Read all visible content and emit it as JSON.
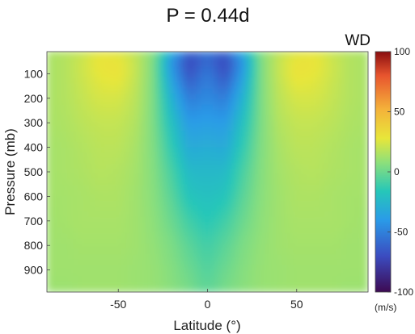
{
  "chart_data": {
    "type": "heatmap",
    "title": "P = 0.44d",
    "panel_label": "WD",
    "xlabel": "Latitude (°)",
    "ylabel": "Pressure (mb)",
    "xlim": [
      -90,
      90
    ],
    "ylim": [
      990,
      10
    ],
    "y_reversed": true,
    "x_ticks": [
      -50,
      0,
      50
    ],
    "x_tick_labels": [
      "-50",
      "0",
      "50"
    ],
    "y_ticks": [
      100,
      200,
      300,
      400,
      500,
      600,
      700,
      800,
      900
    ],
    "y_tick_labels": [
      "100",
      "200",
      "300",
      "400",
      "500",
      "600",
      "700",
      "800",
      "900"
    ],
    "colorbar": {
      "min": -100,
      "max": 100,
      "ticks": [
        100,
        50,
        0,
        -50,
        -100
      ],
      "tick_labels": [
        "100",
        "50",
        "0",
        "-50",
        "-100"
      ],
      "unit": "(m/s)",
      "colormap": "parula-jet",
      "colors": [
        "#3d0a52",
        "#3b4cc0",
        "#2a9be8",
        "#26c7b8",
        "#8ee07a",
        "#e8e63a",
        "#f4b23a",
        "#e8552e",
        "#8a0e10"
      ]
    },
    "grid": false,
    "latitudes": [
      -90,
      -80,
      -70,
      -60,
      -50,
      -40,
      -30,
      -20,
      -10,
      0,
      10,
      20,
      30,
      40,
      50,
      60,
      70,
      80,
      90
    ],
    "pressure_levels": [
      10,
      50,
      100,
      200,
      300,
      400,
      500,
      600,
      700,
      800,
      900,
      990
    ],
    "values": [
      [
        14,
        16,
        20,
        26,
        24,
        18,
        6,
        -28,
        -60,
        -52,
        -60,
        -28,
        6,
        18,
        24,
        26,
        20,
        16,
        14
      ],
      [
        14,
        16,
        22,
        30,
        30,
        20,
        4,
        -42,
        -72,
        -58,
        -72,
        -42,
        4,
        20,
        30,
        30,
        22,
        16,
        14
      ],
      [
        14,
        16,
        22,
        28,
        30,
        20,
        4,
        -38,
        -68,
        -52,
        -68,
        -38,
        4,
        20,
        30,
        28,
        22,
        16,
        14
      ],
      [
        14,
        16,
        20,
        24,
        24,
        18,
        4,
        -28,
        -52,
        -46,
        -52,
        -28,
        4,
        18,
        24,
        24,
        20,
        16,
        14
      ],
      [
        14,
        15,
        18,
        20,
        20,
        16,
        4,
        -20,
        -40,
        -38,
        -40,
        -20,
        4,
        16,
        20,
        20,
        18,
        15,
        14
      ],
      [
        13,
        14,
        16,
        18,
        18,
        14,
        5,
        -14,
        -32,
        -30,
        -32,
        -14,
        5,
        14,
        18,
        18,
        16,
        14,
        13
      ],
      [
        13,
        14,
        15,
        17,
        16,
        13,
        6,
        -8,
        -24,
        -24,
        -24,
        -8,
        6,
        13,
        16,
        17,
        15,
        14,
        13
      ],
      [
        13,
        13,
        14,
        15,
        15,
        12,
        7,
        -4,
        -18,
        -20,
        -18,
        -4,
        7,
        12,
        15,
        15,
        14,
        13,
        13
      ],
      [
        12,
        13,
        14,
        14,
        14,
        12,
        8,
        0,
        -10,
        -16,
        -10,
        0,
        8,
        12,
        14,
        14,
        14,
        13,
        12
      ],
      [
        12,
        12,
        13,
        13,
        13,
        12,
        9,
        4,
        -4,
        -10,
        -4,
        4,
        9,
        12,
        13,
        13,
        13,
        12,
        12
      ],
      [
        12,
        12,
        12,
        12,
        12,
        11,
        10,
        6,
        0,
        -6,
        0,
        6,
        10,
        11,
        12,
        12,
        12,
        12,
        12
      ],
      [
        11,
        11,
        12,
        12,
        12,
        11,
        10,
        7,
        3,
        -3,
        3,
        7,
        10,
        11,
        12,
        12,
        12,
        11,
        11
      ]
    ]
  }
}
